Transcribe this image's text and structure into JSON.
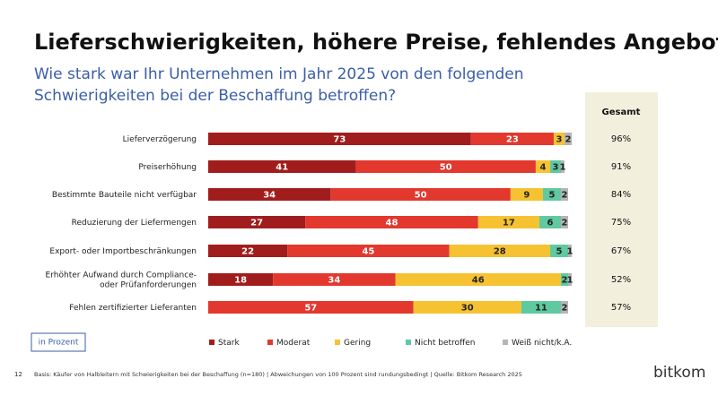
{
  "chart_data": {
    "type": "stacked-bar",
    "orientation": "horizontal",
    "title": "Lieferschwierigkeiten, höhere Preise, fehlendes Angebot",
    "subtitle": [
      "Wie stark war Ihr Unternehmen im Jahr 2025 von den folgenden",
      "Schwierigkeiten bei der Beschaffung betroffen?"
    ],
    "categories": [
      "Lieferverzögerung",
      "Preiserhöhung",
      "Bestimmte Bauteile nicht verfügbar",
      "Reduzierung der Liefermengen",
      "Export- oder Importbeschränkungen",
      "Erhöhter Aufwand durch Compliance-\noder Prüfanforderungen",
      "Fehlen zertifizierter Lieferanten"
    ],
    "series": [
      {
        "name": "Stark",
        "color": "#a11d1d",
        "values": [
          73,
          41,
          34,
          27,
          22,
          18,
          0
        ]
      },
      {
        "name": "Moderat",
        "color": "#e2382e",
        "values": [
          23,
          50,
          50,
          48,
          45,
          34,
          57
        ]
      },
      {
        "name": "Gering",
        "color": "#f6c231",
        "values": [
          3,
          4,
          9,
          17,
          28,
          46,
          30
        ]
      },
      {
        "name": "Nicht betroffen",
        "color": "#5fc9a0",
        "values": [
          0,
          3,
          5,
          6,
          5,
          2,
          11
        ]
      },
      {
        "name": "Weiß nicht/k.A.",
        "color": "#b5b5b5",
        "values": [
          2,
          1,
          2,
          2,
          1,
          1,
          2
        ]
      }
    ],
    "xlim": [
      0,
      100
    ],
    "total": {
      "title": "Gesamt",
      "values": [
        96,
        91,
        84,
        75,
        67,
        52,
        57
      ],
      "value_labels": [
        "96%",
        "91%",
        "84%",
        "75%",
        "67%",
        "52%",
        "57%"
      ]
    },
    "unit_note": "in Prozent"
  },
  "footer": {
    "page": "12",
    "source": "Basis: Käufer von Halbleitern mit Schwierigkeiten bei der Beschaffung (n=180) | Abweichungen von 100 Prozent sind rundungsbedingt | Quelle: Bitkom Research 2025",
    "logo": "bitkom"
  }
}
